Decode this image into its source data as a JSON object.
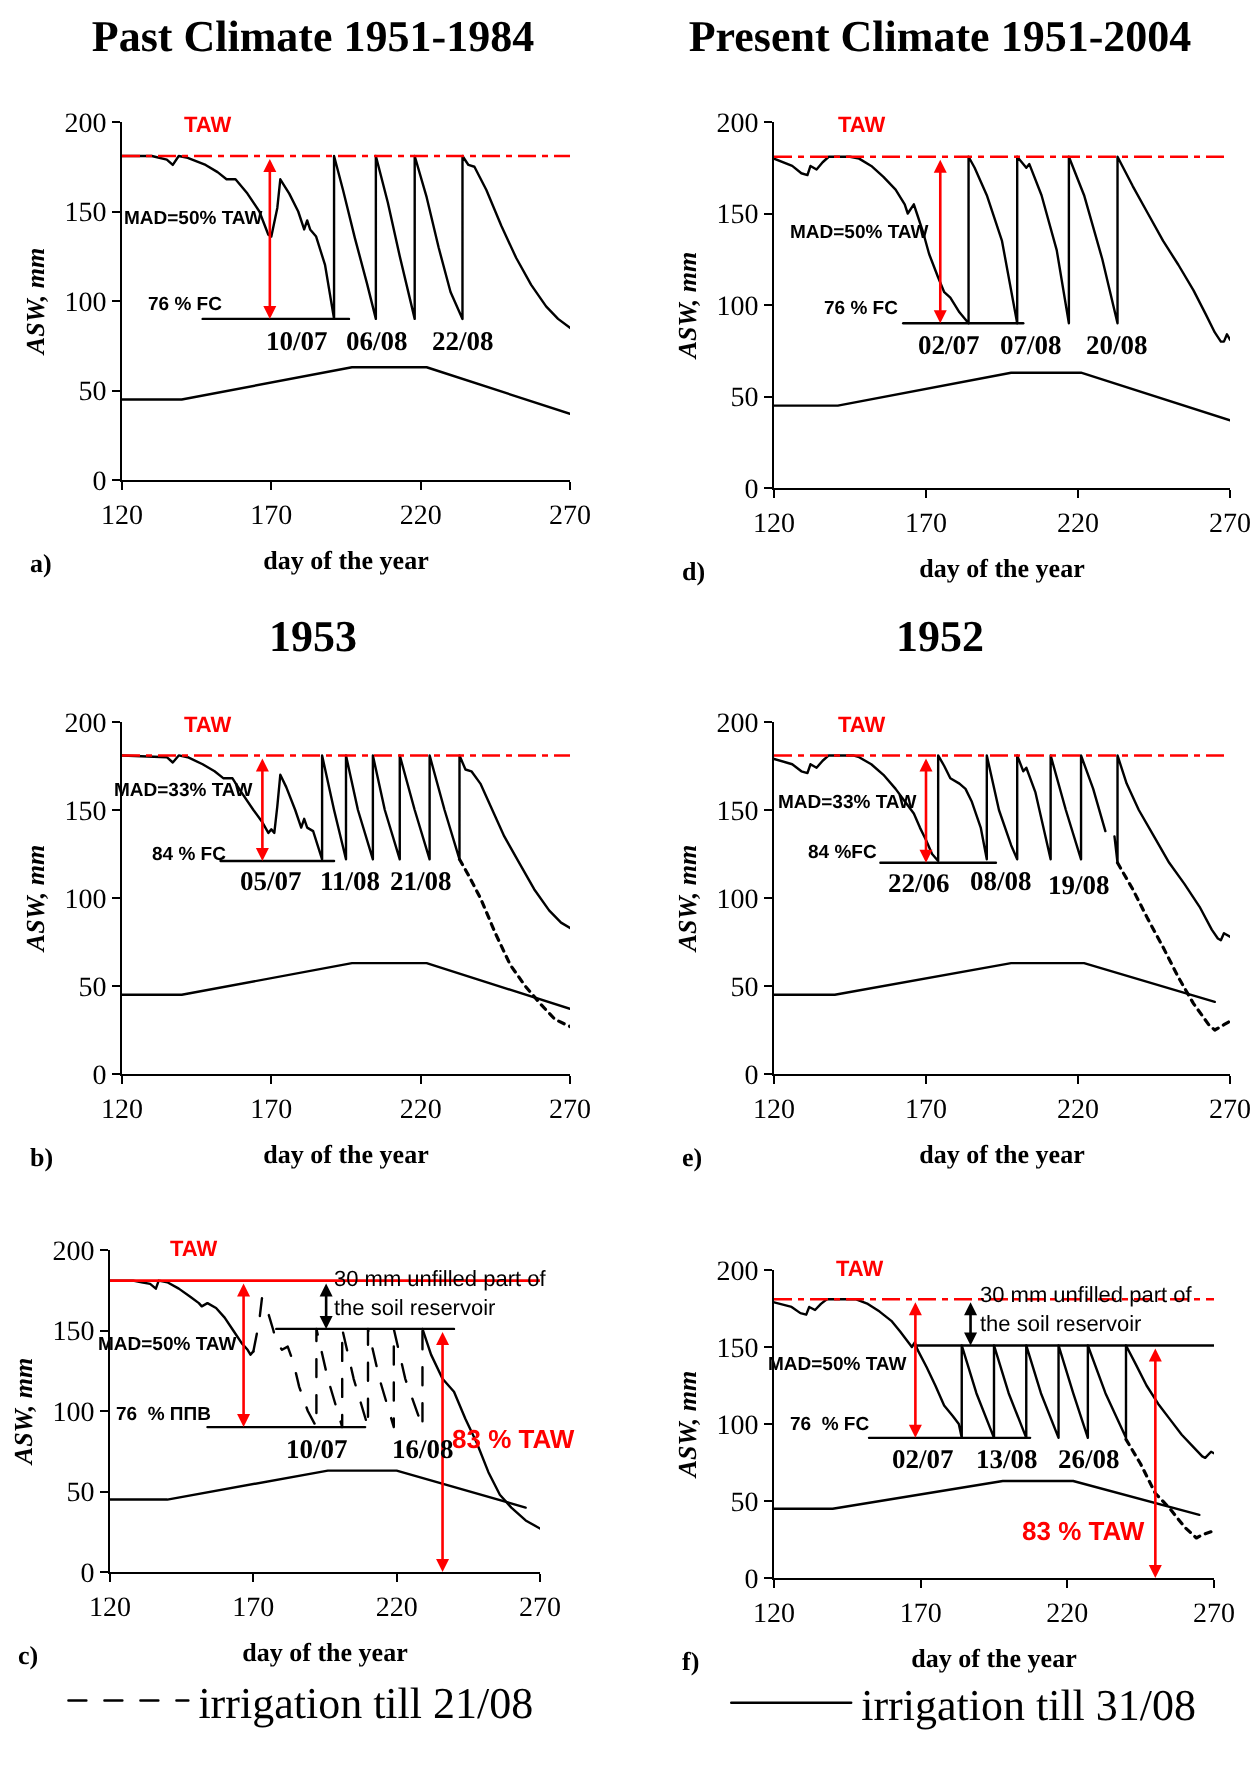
{
  "chart_data": [
    {
      "type": "line",
      "title": "Past Climate 1951-1984",
      "xlabel": "day of the year",
      "ylabel": "ASW, mm",
      "xlim": [
        120,
        270
      ],
      "xticks": [
        120,
        170,
        220,
        270
      ],
      "ylim": [
        0,
        200
      ],
      "yticks": [
        0,
        50,
        100,
        150,
        200
      ],
      "series": [
        {
          "color": "#000000",
          "x": [
            120,
            130,
            135,
            137,
            139,
            142,
            148,
            152,
            155,
            158,
            162,
            166,
            169,
            170,
            172,
            173,
            176,
            179,
            181,
            182,
            183,
            185,
            188,
            191,
            191,
            194,
            198,
            202,
            205,
            205,
            209,
            213,
            218,
            218,
            222,
            226,
            230,
            234,
            234,
            236,
            238,
            242,
            247,
            252,
            257,
            262,
            266,
            270
          ],
          "values": [
            181,
            181,
            179,
            176,
            181,
            180,
            176,
            172,
            168,
            168,
            160,
            150,
            137,
            136,
            152,
            168,
            160,
            150,
            140,
            145,
            140,
            136,
            120,
            90,
            181,
            162,
            135,
            110,
            90,
            181,
            155,
            125,
            90,
            181,
            158,
            130,
            105,
            90,
            181,
            176,
            175,
            162,
            142,
            124,
            109,
            97,
            90,
            85
          ]
        },
        {
          "color": "#000000",
          "x": [
            120,
            140,
            197,
            222,
            270
          ],
          "values": [
            45,
            45,
            63,
            63,
            37
          ]
        },
        {
          "color": "#000000",
          "x": [
            147,
            196
          ],
          "values": [
            90,
            90
          ]
        }
      ],
      "ref_lines": [
        {
          "axis": "y",
          "value": 181,
          "label": "TAW",
          "color": "#ff0000",
          "line_style": "dashdot"
        }
      ],
      "annotations": [
        "MAD=50% TAW",
        "76 % FC",
        {
          "text": "10/07",
          "x": 191,
          "y": 90
        },
        {
          "text": "06/08",
          "x": 218,
          "y": 90
        },
        {
          "text": "22/08",
          "x": 234,
          "y": 90
        },
        "a)"
      ]
    },
    {
      "type": "line",
      "title": "Present Climate 1951-2004",
      "xlabel": "day of the year",
      "ylabel": "ASW, mm",
      "xlim": [
        120,
        270
      ],
      "xticks": [
        120,
        170,
        220,
        270
      ],
      "ylim": [
        0,
        200
      ],
      "yticks": [
        0,
        50,
        100,
        150,
        200
      ],
      "series": [
        {
          "color": "#000000",
          "x": [
            120,
            126,
            129,
            131,
            132,
            134,
            136,
            138,
            145,
            148,
            152,
            156,
            160,
            163,
            164,
            166,
            167,
            169,
            171,
            174,
            176,
            178,
            181,
            184,
            184,
            186,
            190,
            195,
            200,
            200,
            203,
            204,
            208,
            213,
            217,
            217,
            222,
            228,
            233,
            233,
            238,
            243,
            248,
            253,
            258,
            262,
            265,
            267,
            268,
            269,
            270
          ],
          "values": [
            180,
            176,
            172,
            171,
            176,
            174,
            178,
            181,
            181,
            180,
            176,
            170,
            163,
            155,
            150,
            155,
            150,
            140,
            128,
            115,
            107,
            104,
            96,
            90,
            181,
            175,
            160,
            135,
            90,
            181,
            175,
            177,
            160,
            130,
            90,
            181,
            160,
            125,
            90,
            181,
            165,
            150,
            135,
            122,
            108,
            95,
            85,
            80,
            80,
            84,
            81
          ]
        },
        {
          "color": "#000000",
          "x": [
            120,
            141,
            198,
            221,
            270
          ],
          "values": [
            45,
            45,
            63,
            63,
            37
          ]
        },
        {
          "color": "#000000",
          "x": [
            162.5,
            202
          ],
          "values": [
            90,
            90
          ]
        }
      ],
      "ref_lines": [
        {
          "axis": "y",
          "value": 181,
          "label": "TAW",
          "color": "#ff0000",
          "line_style": "dashdot"
        }
      ],
      "annotations": [
        "MAD=50% TAW",
        "76 % FC",
        {
          "text": "02/07",
          "x": 184,
          "y": 90
        },
        {
          "text": "07/08",
          "x": 217,
          "y": 90
        },
        {
          "text": "20/08",
          "x": 233,
          "y": 90
        },
        "d)"
      ]
    },
    {
      "type": "line",
      "title": "1953",
      "xlabel": "day of the year",
      "ylabel": "ASW, mm",
      "xlim": [
        120,
        270
      ],
      "xticks": [
        120,
        170,
        220,
        270
      ],
      "ylim": [
        0,
        200
      ],
      "yticks": [
        0,
        50,
        100,
        150,
        200
      ],
      "series": [
        {
          "color": "#000000",
          "x": [
            120,
            135,
            137,
            139,
            142,
            147,
            151,
            154,
            157,
            160,
            164,
            167,
            169,
            170,
            171,
            172,
            173,
            175,
            178,
            180,
            181,
            182,
            184,
            187,
            187,
            191,
            195,
            195,
            199,
            204,
            204,
            208,
            213,
            213,
            218,
            223,
            223,
            228,
            233,
            233,
            235,
            237,
            240,
            244,
            248,
            253,
            258,
            263,
            267,
            270
          ],
          "values": [
            181,
            180,
            177,
            181,
            180,
            176,
            172,
            168,
            168,
            160,
            150,
            143,
            137,
            139,
            137,
            152,
            170,
            163,
            150,
            140,
            145,
            140,
            138,
            122,
            181,
            150,
            122,
            181,
            150,
            122,
            181,
            150,
            122,
            181,
            150,
            122,
            181,
            150,
            122,
            181,
            173,
            172,
            165,
            150,
            135,
            120,
            105,
            93,
            86,
            83
          ]
        },
        {
          "color": "#000000",
          "x": [
            120,
            140,
            197,
            222,
            270
          ],
          "values": [
            45,
            45,
            63,
            63,
            37
          ]
        },
        {
          "color": "#000000",
          "x": [
            153,
            191
          ],
          "values": [
            121,
            121
          ]
        },
        {
          "color": "#000000",
          "line_style": "dotted",
          "x": [
            233,
            236,
            240,
            245,
            250,
            255,
            260,
            265,
            270
          ],
          "values": [
            122,
            113,
            100,
            80,
            62,
            50,
            40,
            31,
            27
          ]
        }
      ],
      "ref_lines": [
        {
          "axis": "y",
          "value": 181,
          "label": "TAW",
          "color": "#ff0000",
          "line_style": "dashdot"
        }
      ],
      "annotations": [
        "MAD=33% TAW",
        "84 % FC",
        {
          "text": "05/07",
          "x": 187,
          "y": 122
        },
        {
          "text": "11/08",
          "x": 223,
          "y": 122
        },
        {
          "text": "21/08",
          "x": 233,
          "y": 122
        },
        "b)"
      ]
    },
    {
      "type": "line",
      "title": "1952",
      "xlabel": "day of the year",
      "ylabel": "ASW, mm",
      "xlim": [
        120,
        270
      ],
      "xticks": [
        120,
        170,
        220,
        270
      ],
      "ylim": [
        0,
        200
      ],
      "yticks": [
        0,
        50,
        100,
        150,
        200
      ],
      "series": [
        {
          "color": "#000000",
          "x": [
            120,
            126,
            129,
            131,
            132,
            134,
            136,
            138,
            146,
            148,
            152,
            156,
            160,
            163,
            166,
            168,
            170,
            172,
            174,
            174,
            176,
            178,
            181,
            183,
            185,
            188,
            190,
            190,
            194,
            198,
            200,
            200,
            202,
            203,
            206,
            211,
            211,
            216,
            221,
            221,
            225,
            229,
            230,
            232,
            233,
            233,
            236,
            240,
            245,
            250,
            255,
            260,
            264,
            266,
            267,
            268,
            270
          ],
          "values": [
            179,
            176,
            172,
            171,
            176,
            174,
            178,
            181,
            181,
            180,
            176,
            170,
            162,
            155,
            148,
            140,
            133,
            125,
            121,
            181,
            175,
            168,
            165,
            162,
            155,
            140,
            122,
            181,
            150,
            130,
            122,
            181,
            172,
            174,
            160,
            122,
            181,
            150,
            122,
            181,
            162,
            138,
            null,
            135,
            120,
            181,
            165,
            150,
            135,
            120,
            108,
            95,
            82,
            77,
            76,
            80,
            78
          ]
        },
        {
          "color": "#000000",
          "x": [
            120,
            140,
            198,
            222,
            265
          ],
          "values": [
            45,
            45,
            63,
            63,
            41
          ]
        },
        {
          "color": "#000000",
          "x": [
            155,
            193
          ],
          "values": [
            120,
            120
          ]
        },
        {
          "color": "#000000",
          "line_style": "dotted",
          "x": [
            233,
            238,
            243,
            248,
            253,
            258,
            263,
            265,
            268,
            270
          ],
          "values": [
            120,
            105,
            88,
            72,
            55,
            40,
            28,
            25,
            28,
            30
          ]
        }
      ],
      "ref_lines": [
        {
          "axis": "y",
          "value": 181,
          "label": "TAW",
          "color": "#ff0000",
          "line_style": "dashdot"
        }
      ],
      "annotations": [
        "MAD=33% TAW",
        "84 %FC",
        {
          "text": "22/06",
          "x": 174,
          "y": 121
        },
        {
          "text": "08/08",
          "x": 221,
          "y": 122
        },
        {
          "text": "19/08",
          "x": 233,
          "y": 120
        },
        "e)"
      ]
    },
    {
      "type": "line",
      "xlabel": "day of the year",
      "ylabel": "ASW, mm",
      "xlim": [
        120,
        270
      ],
      "xticks": [
        120,
        170,
        220,
        270
      ],
      "ylim": [
        0,
        200
      ],
      "yticks": [
        0,
        50,
        100,
        150,
        200
      ],
      "legend": "bottom",
      "series": [
        {
          "color": "#000000",
          "x": [
            120,
            128,
            131,
            134,
            136,
            137,
            140,
            144,
            148,
            151,
            152,
            154,
            157,
            160,
            163,
            166,
            168,
            169,
            170,
            200,
            229,
            232,
            236,
            240,
            244,
            248,
            252,
            256,
            260,
            265,
            270
          ],
          "values": [
            181,
            181,
            180,
            179,
            176,
            181,
            180,
            176,
            171,
            167,
            165,
            167,
            164,
            158,
            150,
            142,
            138,
            135,
            137,
            null,
            151,
            135,
            120,
            112,
            95,
            80,
            62,
            48,
            40,
            32,
            27
          ]
        },
        {
          "color": "#000000",
          "x": [
            120,
            140,
            196,
            220,
            265
          ],
          "values": [
            45,
            45,
            63,
            63,
            40
          ]
        },
        {
          "color": "#000000",
          "x": [
            154,
            209
          ],
          "values": [
            90,
            90
          ]
        },
        {
          "color": "#000000",
          "x": [
            178,
            240
          ],
          "values": [
            151,
            151
          ]
        },
        {
          "name": "irrigation till 21/08",
          "color": "#000000",
          "line_style": "dashed",
          "x": [
            170,
            172,
            173,
            175,
            177,
            178,
            180,
            182,
            184,
            186,
            189,
            192,
            192,
            196,
            201,
            201,
            205,
            210,
            210,
            214,
            219,
            219,
            223,
            229,
            229
          ],
          "values": [
            137,
            155,
            170,
            162,
            150,
            143,
            138,
            140,
            130,
            115,
            100,
            90,
            151,
            120,
            90,
            151,
            120,
            90,
            151,
            120,
            90,
            151,
            120,
            90,
            151
          ]
        }
      ],
      "ref_lines": [
        {
          "axis": "y",
          "value": 181,
          "label": "TAW",
          "color": "#ff0000",
          "line_style": "solid"
        }
      ],
      "annotations": [
        "MAD=50% TAW",
        "83 % TAW",
        "30 mm unfilled part of\nthe soil reservoir",
        "76  % ППВ",
        {
          "text": "10/07",
          "x": 192,
          "y": 90
        },
        {
          "text": "16/08",
          "x": 229,
          "y": 90
        },
        "c)"
      ]
    },
    {
      "type": "line",
      "xlabel": "day of the year",
      "ylabel": "ASW, mm",
      "xlim": [
        120,
        270
      ],
      "xticks": [
        120,
        170,
        220,
        270
      ],
      "ylim": [
        0,
        200
      ],
      "yticks": [
        0,
        50,
        100,
        150,
        200
      ],
      "legend": "bottom",
      "series": [
        {
          "name": "irrigation till 31/08",
          "color": "#000000",
          "x": [
            120,
            126,
            129,
            131,
            132,
            134,
            136,
            138,
            148,
            152,
            156,
            160,
            163,
            165,
            167,
            168,
            169,
            172,
            175,
            178,
            181,
            183,
            184,
            184,
            189,
            195,
            195,
            200,
            206,
            206,
            211,
            217,
            217,
            222,
            227,
            227,
            233,
            240,
            240,
            243,
            247,
            251,
            255,
            259,
            263,
            266,
            267,
            269,
            270
          ],
          "values": [
            179,
            176,
            172,
            171,
            176,
            174,
            178,
            181,
            181,
            178,
            173,
            167,
            160,
            155,
            150,
            153,
            148,
            137,
            125,
            112,
            105,
            100,
            91,
            151,
            120,
            91,
            151,
            120,
            91,
            151,
            120,
            91,
            151,
            120,
            91,
            151,
            120,
            91,
            151,
            140,
            125,
            113,
            103,
            93,
            85,
            79,
            78,
            82,
            81
          ]
        },
        {
          "color": "#000000",
          "x": [
            120,
            140,
            198,
            222,
            265
          ],
          "values": [
            45,
            45,
            63,
            63,
            41
          ]
        },
        {
          "color": "#000000",
          "x": [
            152.4,
            207.3
          ],
          "values": [
            91,
            91
          ]
        },
        {
          "color": "#000000",
          "x": [
            168,
            270
          ],
          "values": [
            151,
            151
          ]
        },
        {
          "color": "#000000",
          "line_style": "dotted",
          "x": [
            240,
            245,
            250,
            255,
            260,
            264,
            266,
            269
          ],
          "values": [
            90,
            74,
            55,
            45,
            33,
            26,
            28,
            30
          ]
        }
      ],
      "ref_lines": [
        {
          "axis": "y",
          "value": 181,
          "label": "TAW",
          "color": "#ff0000",
          "line_style": "dashdot"
        }
      ],
      "annotations": [
        "MAD=50% TAW",
        "83 % TAW",
        "30 mm unfilled part of\nthe soil reservoir",
        "76  % FC",
        {
          "text": "02/07",
          "x": 184,
          "y": 91
        },
        {
          "text": "13/08",
          "x": 227,
          "y": 91
        },
        {
          "text": "26/08",
          "x": 240,
          "y": 91
        },
        "f)"
      ]
    }
  ]
}
